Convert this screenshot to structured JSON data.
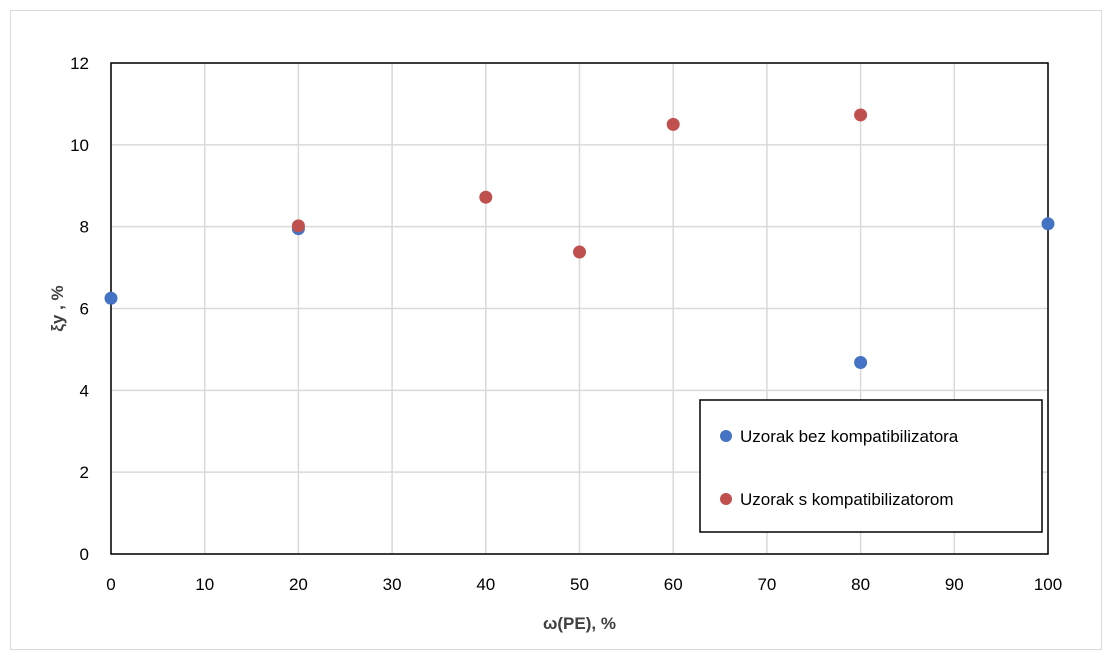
{
  "chart_data": {
    "type": "scatter",
    "title": "",
    "xlabel": "ω(PE), %",
    "ylabel": "ξy , %",
    "xlim": [
      0,
      100
    ],
    "ylim": [
      0,
      12
    ],
    "xticks": [
      0,
      10,
      20,
      30,
      40,
      50,
      60,
      70,
      80,
      90,
      100
    ],
    "yticks": [
      0,
      2,
      4,
      6,
      8,
      10,
      12
    ],
    "grid": true,
    "legend_position": "bottom-right",
    "series": [
      {
        "name": "Uzorak bez kompatibilizatora",
        "color": "#4472c4",
        "points": [
          {
            "x": 0,
            "y": 6.25
          },
          {
            "x": 20,
            "y": 7.95
          },
          {
            "x": 80,
            "y": 4.68
          },
          {
            "x": 100,
            "y": 8.07
          }
        ]
      },
      {
        "name": "Uzorak s kompatibilizatorom",
        "color": "#c0504d",
        "points": [
          {
            "x": 20,
            "y": 8.02
          },
          {
            "x": 40,
            "y": 8.72
          },
          {
            "x": 50,
            "y": 7.38
          },
          {
            "x": 60,
            "y": 10.5
          },
          {
            "x": 80,
            "y": 10.73
          }
        ]
      }
    ]
  }
}
